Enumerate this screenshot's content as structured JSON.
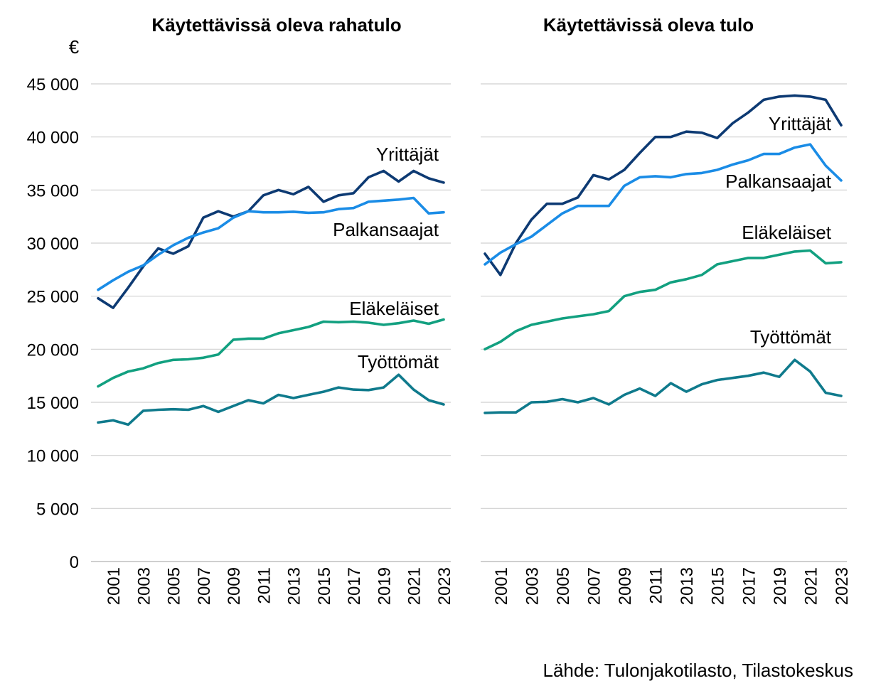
{
  "chart_data": [
    {
      "type": "line",
      "title": "Käytettävissä oleva rahatulo",
      "unit_label": "€",
      "ylim": [
        0,
        45000
      ],
      "yticks": [
        0,
        5000,
        10000,
        15000,
        20000,
        25000,
        30000,
        35000,
        40000,
        45000
      ],
      "ytick_labels": [
        "0",
        "5 000",
        "10 000",
        "15 000",
        "20 000",
        "25 000",
        "30 000",
        "35 000",
        "40 000",
        "45 000"
      ],
      "x": [
        2000,
        2001,
        2002,
        2003,
        2004,
        2005,
        2006,
        2007,
        2008,
        2009,
        2010,
        2011,
        2012,
        2013,
        2014,
        2015,
        2016,
        2017,
        2018,
        2019,
        2020,
        2021,
        2022,
        2023
      ],
      "xtick_labels": [
        "2001",
        "2003",
        "2005",
        "2007",
        "2009",
        "2011",
        "2013",
        "2015",
        "2017",
        "2019",
        "2021",
        "2023"
      ],
      "grid": true,
      "series": [
        {
          "name": "Yrittäjät",
          "color": "#0d3a73",
          "values": [
            24800,
            23900,
            25800,
            27800,
            29500,
            29000,
            29700,
            32400,
            33000,
            32500,
            33000,
            34500,
            35000,
            34600,
            35300,
            33900,
            34500,
            34700,
            36200,
            36800,
            35800,
            36800,
            36100,
            35700
          ]
        },
        {
          "name": "Palkansaajat",
          "color": "#1a8ce6",
          "values": [
            25600,
            26500,
            27300,
            27900,
            28900,
            29800,
            30500,
            31000,
            31400,
            32400,
            33000,
            32900,
            32900,
            32950,
            32850,
            32900,
            33200,
            33300,
            33900,
            34000,
            34100,
            34250,
            32800,
            32900
          ]
        },
        {
          "name": "Eläkeläiset",
          "color": "#12a080",
          "values": [
            16500,
            17300,
            17900,
            18200,
            18700,
            19000,
            19050,
            19200,
            19500,
            20900,
            21000,
            21000,
            21500,
            21800,
            22100,
            22600,
            22550,
            22600,
            22500,
            22300,
            22450,
            22700,
            22400,
            22800
          ]
        },
        {
          "name": "Työttömät",
          "color": "#0f7a8c",
          "values": [
            13100,
            13300,
            12900,
            14200,
            14300,
            14350,
            14300,
            14650,
            14100,
            14650,
            15200,
            14900,
            15700,
            15400,
            15700,
            16000,
            16400,
            16200,
            16150,
            16400,
            17600,
            16200,
            15200,
            14800
          ]
        }
      ]
    },
    {
      "type": "line",
      "title": "Käytettävissä oleva tulo",
      "ylim": [
        0,
        45000
      ],
      "yticks": [
        0,
        5000,
        10000,
        15000,
        20000,
        25000,
        30000,
        35000,
        40000,
        45000
      ],
      "x": [
        2000,
        2001,
        2002,
        2003,
        2004,
        2005,
        2006,
        2007,
        2008,
        2009,
        2010,
        2011,
        2012,
        2013,
        2014,
        2015,
        2016,
        2017,
        2018,
        2019,
        2020,
        2021,
        2022,
        2023
      ],
      "xtick_labels": [
        "2001",
        "2003",
        "2005",
        "2007",
        "2009",
        "2011",
        "2013",
        "2015",
        "2017",
        "2019",
        "2021",
        "2023"
      ],
      "grid": true,
      "series": [
        {
          "name": "Yrittäjät",
          "color": "#0d3a73",
          "values": [
            29000,
            27000,
            30000,
            32200,
            33700,
            33700,
            34300,
            36400,
            36000,
            36900,
            38500,
            40000,
            40000,
            40500,
            40400,
            39900,
            41300,
            42300,
            43500,
            43800,
            43900,
            43800,
            43500,
            41100
          ]
        },
        {
          "name": "Palkansaajat",
          "color": "#1a8ce6",
          "values": [
            28000,
            29100,
            29900,
            30600,
            31700,
            32800,
            33500,
            33500,
            33500,
            35400,
            36200,
            36300,
            36200,
            36500,
            36600,
            36900,
            37400,
            37800,
            38400,
            38400,
            39000,
            39300,
            37300,
            35900
          ]
        },
        {
          "name": "Eläkeläiset",
          "color": "#12a080",
          "values": [
            20000,
            20700,
            21700,
            22300,
            22600,
            22900,
            23100,
            23300,
            23600,
            25000,
            25400,
            25600,
            26300,
            26600,
            27000,
            28000,
            28300,
            28600,
            28600,
            28900,
            29200,
            29300,
            28100,
            28200
          ]
        },
        {
          "name": "Työttömät",
          "color": "#0f7a8c",
          "values": [
            14000,
            14050,
            14050,
            15000,
            15050,
            15300,
            15000,
            15400,
            14800,
            15700,
            16300,
            15600,
            16800,
            16000,
            16700,
            17100,
            17300,
            17500,
            17800,
            17400,
            19000,
            17900,
            15900,
            15600
          ]
        }
      ]
    }
  ],
  "source_text": "Lähde: Tulonjakotilasto, Tilastokeskus"
}
